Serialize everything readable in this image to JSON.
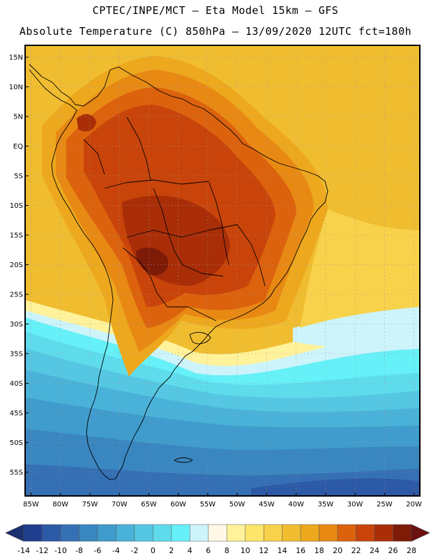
{
  "header": {
    "line1": "CPTEC/INPE/MCT —  Eta Model 15km — GFS",
    "line2": "Absolute Temperature (C) 850hPa — 13/09/2020 12UTC fct=180h"
  },
  "map": {
    "lat_labels": [
      "15N",
      "10N",
      "5N",
      "EQ",
      "5S",
      "10S",
      "15S",
      "20S",
      "25S",
      "30S",
      "35S",
      "40S",
      "45S",
      "50S",
      "55S"
    ],
    "lat_values": [
      15,
      10,
      5,
      0,
      -5,
      -10,
      -15,
      -20,
      -25,
      -30,
      -35,
      -40,
      -45,
      -50,
      -55
    ],
    "lon_labels": [
      "85W",
      "80W",
      "75W",
      "70W",
      "65W",
      "60W",
      "55W",
      "50W",
      "45W",
      "40W",
      "35W",
      "30W",
      "25W",
      "20W"
    ],
    "lon_values": [
      -85,
      -80,
      -75,
      -70,
      -65,
      -60,
      -55,
      -50,
      -45,
      -40,
      -35,
      -30,
      -25,
      -20
    ],
    "lat_range": [
      -59,
      17
    ],
    "lon_range": [
      -86,
      -19
    ]
  },
  "colorbar": {
    "labels": [
      "-14",
      "-12",
      "-10",
      "-8",
      "-6",
      "-4",
      "-2",
      "0",
      "2",
      "4",
      "6",
      "8",
      "10",
      "12",
      "14",
      "16",
      "18",
      "20",
      "22",
      "24",
      "26",
      "28"
    ],
    "colors": [
      "#203f8e",
      "#2d5aa6",
      "#356fb4",
      "#3a86c0",
      "#3f9ccc",
      "#4ab2d8",
      "#55c7e2",
      "#5edcec",
      "#66f0f8",
      "#cdf4fb",
      "#fff8e6",
      "#fff29a",
      "#fde56b",
      "#f8d24a",
      "#f0bd30",
      "#eda81e",
      "#e88914",
      "#dc620d",
      "#c9440a",
      "#a92e08",
      "#7e1b07"
    ],
    "under_color": "#1a3070",
    "over_color": "#6a1010"
  }
}
